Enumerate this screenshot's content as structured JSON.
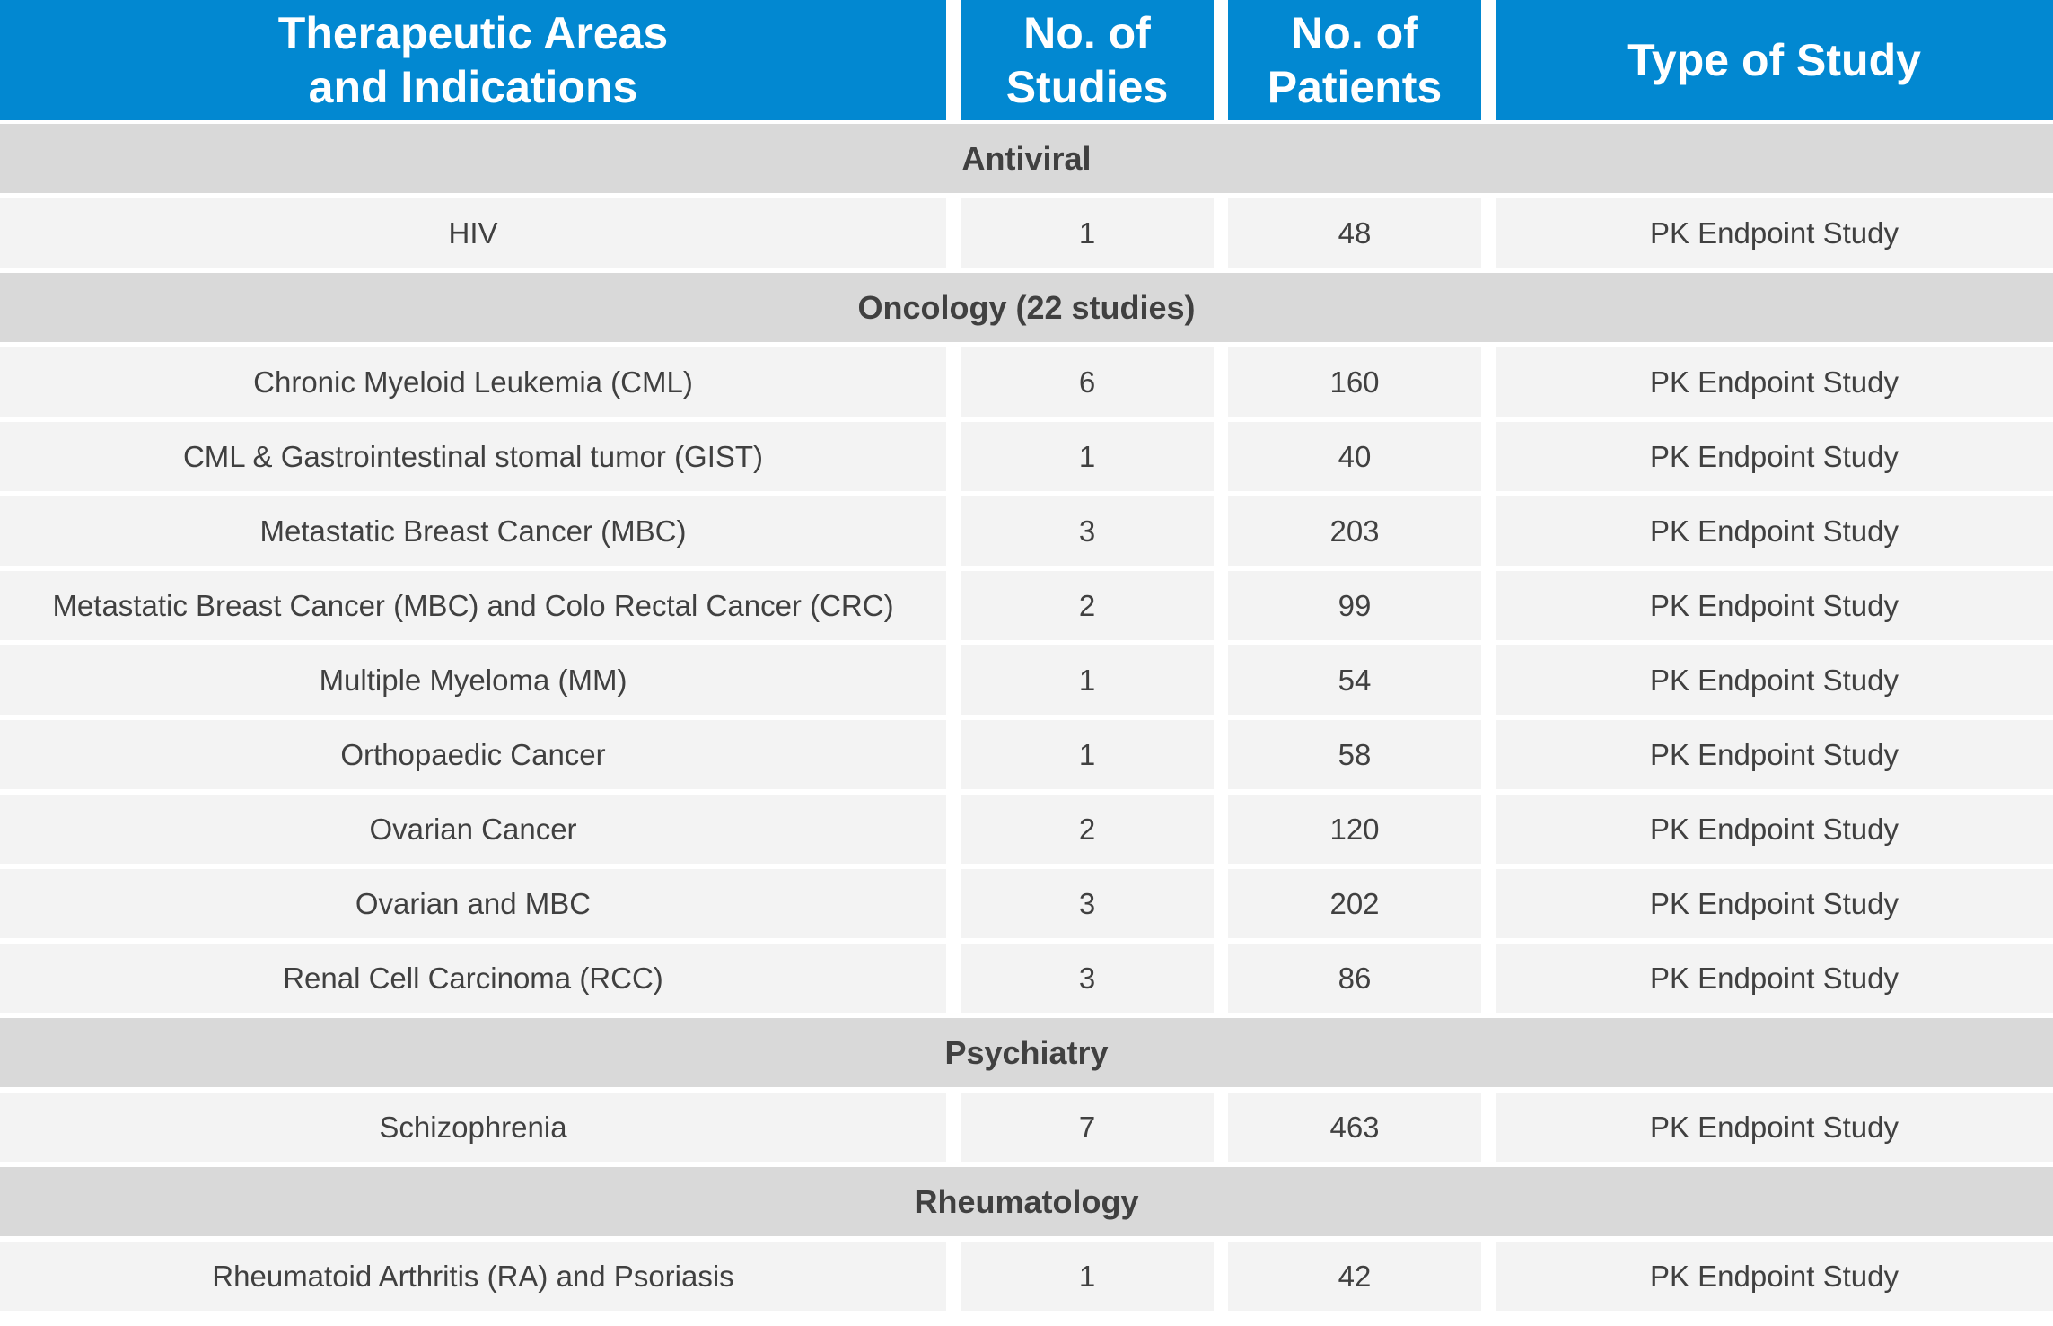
{
  "header": {
    "col1": [
      "Therapeutic Areas",
      "and Indications"
    ],
    "col2": [
      "No. of",
      "Studies"
    ],
    "col3": [
      "No. of",
      "Patients"
    ],
    "col4": [
      "Type of Study"
    ]
  },
  "sections": [
    {
      "title": "Antiviral",
      "rows": [
        {
          "indication": "HIV",
          "studies": "1",
          "patients": "48",
          "type": "PK Endpoint Study"
        }
      ]
    },
    {
      "title": "Oncology (22 studies)",
      "rows": [
        {
          "indication": "Chronic Myeloid Leukemia (CML)",
          "studies": "6",
          "patients": "160",
          "type": "PK Endpoint Study"
        },
        {
          "indication": "CML & Gastrointestinal stomal tumor (GIST)",
          "studies": "1",
          "patients": "40",
          "type": "PK Endpoint Study"
        },
        {
          "indication": "Metastatic Breast Cancer (MBC)",
          "studies": "3",
          "patients": "203",
          "type": "PK Endpoint Study"
        },
        {
          "indication": "Metastatic Breast Cancer (MBC) and Colo Rectal Cancer (CRC)",
          "studies": "2",
          "patients": "99",
          "type": "PK Endpoint Study"
        },
        {
          "indication": "Multiple Myeloma (MM)",
          "studies": "1",
          "patients": "54",
          "type": "PK Endpoint Study"
        },
        {
          "indication": "Orthopaedic Cancer",
          "studies": "1",
          "patients": "58",
          "type": "PK Endpoint Study"
        },
        {
          "indication": "Ovarian Cancer",
          "studies": "2",
          "patients": "120",
          "type": "PK Endpoint Study"
        },
        {
          "indication": "Ovarian and MBC",
          "studies": "3",
          "patients": "202",
          "type": "PK Endpoint Study"
        },
        {
          "indication": "Renal Cell Carcinoma (RCC)",
          "studies": "3",
          "patients": "86",
          "type": "PK Endpoint Study"
        }
      ]
    },
    {
      "title": "Psychiatry",
      "rows": [
        {
          "indication": "Schizophrenia",
          "studies": "7",
          "patients": "463",
          "type": "PK Endpoint Study"
        }
      ]
    },
    {
      "title": "Rheumatology",
      "rows": [
        {
          "indication": "Rheumatoid Arthritis (RA) and Psoriasis",
          "studies": "1",
          "patients": "42",
          "type": "PK Endpoint Study"
        }
      ]
    }
  ],
  "colors": {
    "header_bg": "#0288d1",
    "header_text": "#ffffff",
    "section_bg": "#d9d9d9",
    "row_bg": "#f3f3f3",
    "body_text": "#404040"
  }
}
